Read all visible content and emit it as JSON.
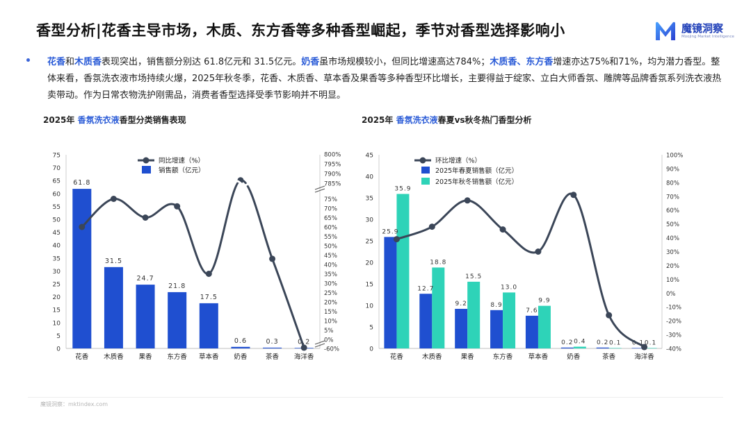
{
  "header": {
    "title": "香型分析|花香主导市场，木质、东方香等多种香型崛起，季节对香型选择影响小",
    "logo_cn": "魔镜洞察",
    "logo_en": "Moojing Market Intelligence"
  },
  "summary": {
    "p1": "花香",
    "p2": "和",
    "p3": "木质香",
    "p4": "表现突出，销售额分别达 61.8亿元和 31.5亿元。",
    "p5": "奶香",
    "p6": "虽市场规模较小，但同比增速高达784%；",
    "p7": "木质香、东方香",
    "p8": "增速亦达75%和71%，均为潜力香型。整体来看，香氛洗衣液市场持续火爆，2025年秋冬季，花香、木质香、草本香及果香等多种香型环比增长，主要得益于绽家、立白大师香氛、雕牌等品牌香氛系列洗衣液热卖带动。作为日常衣物洗护刚需品，消费者香型选择受季节影响并不明显。"
  },
  "chart1_title": {
    "prefix": "2025年 ",
    "highlight": "香氛洗衣液",
    "suffix": "香型分类销售表现"
  },
  "chart2_title": {
    "prefix": "2025年 ",
    "highlight": "香氛洗衣液",
    "suffix": "春夏vs秋冬热门香型分析"
  },
  "footer": {
    "text": "魔镜洞察：mktindex.com"
  },
  "colors": {
    "accent": "#2a5bd7",
    "bar_blue": "#1f4fd0",
    "bar_teal": "#2ed3b8",
    "line": "#3b4658"
  },
  "chart_data": [
    {
      "type": "bar",
      "categories": [
        "花香",
        "木质香",
        "果香",
        "东方香",
        "草本香",
        "奶香",
        "茶香",
        "海洋香"
      ],
      "series": [
        {
          "name": "销售额（亿元）",
          "values": [
            61.8,
            31.5,
            24.7,
            21.8,
            17.5,
            0.6,
            0.3,
            0.2
          ],
          "axis": "left",
          "labels": [
            "61.8",
            "31.5",
            "24.7",
            "21.8",
            "17.5",
            "0.6",
            "0.3",
            "0.2"
          ]
        },
        {
          "name": "同比增速（%）",
          "kind": "line",
          "values": [
            60,
            75,
            65,
            71,
            35,
            784,
            43,
            -55
          ],
          "axis": "right"
        }
      ],
      "left_axis": {
        "ylim": [
          0,
          75
        ],
        "ticks": [
          0,
          5,
          10,
          15,
          20,
          25,
          30,
          35,
          40,
          45,
          50,
          55,
          60,
          65,
          70,
          75
        ]
      },
      "right_axis": {
        "broken": true,
        "lower_ticks": [
          "-60%",
          "0%",
          "5%",
          "10%",
          "15%",
          "20%",
          "25%",
          "30%",
          "35%",
          "40%",
          "45%",
          "50%",
          "55%",
          "60%",
          "65%",
          "70%",
          "75%"
        ],
        "upper_ticks": [
          "785%",
          "790%",
          "795%",
          "800%"
        ]
      },
      "legend": "top-center"
    },
    {
      "type": "bar",
      "categories": [
        "花香",
        "木质香",
        "果香",
        "东方香",
        "草本香",
        "奶香",
        "茶香",
        "海洋香"
      ],
      "series": [
        {
          "name": "2025年春夏销售额（亿元）",
          "values": [
            25.9,
            12.7,
            9.2,
            8.9,
            7.6,
            0.2,
            0.2,
            0.1
          ],
          "axis": "left",
          "labels": [
            "25.9",
            "12.7",
            "9.2",
            "8.9",
            "7.6",
            "0.2",
            "0.2",
            "0.1"
          ]
        },
        {
          "name": "2025年秋冬销售额（亿元）",
          "values": [
            35.9,
            18.8,
            15.5,
            13.0,
            9.9,
            0.4,
            0.1,
            0.1
          ],
          "axis": "left",
          "labels": [
            "35.9",
            "18.8",
            "15.5",
            "13.0",
            "9.9",
            "0.4",
            "0.1",
            "0.1"
          ]
        },
        {
          "name": "环比增速（%）",
          "kind": "line",
          "values": [
            39,
            48,
            67,
            46,
            30,
            71,
            -16,
            -39
          ],
          "axis": "right"
        }
      ],
      "left_axis": {
        "ylim": [
          0,
          45
        ],
        "ticks": [
          0,
          5,
          10,
          15,
          20,
          25,
          30,
          35,
          40,
          45
        ]
      },
      "right_axis": {
        "ylim": [
          -40,
          100
        ],
        "ticks": [
          "-40%",
          "-30%",
          "-20%",
          "-10%",
          "0%",
          "10%",
          "20%",
          "30%",
          "40%",
          "50%",
          "60%",
          "70%",
          "80%",
          "90%",
          "100%"
        ]
      },
      "legend": "top-center"
    }
  ]
}
